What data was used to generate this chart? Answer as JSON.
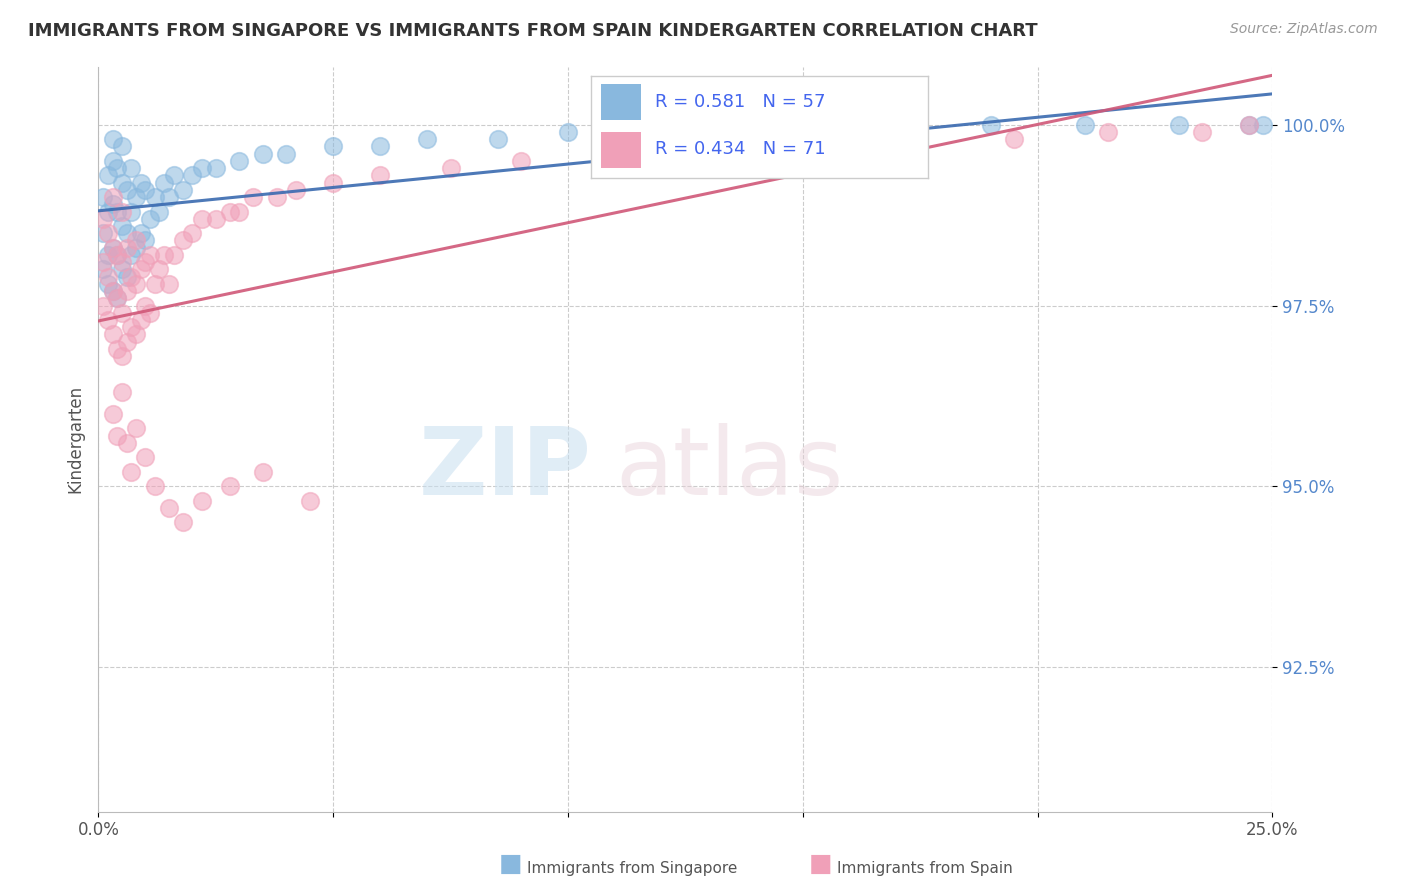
{
  "title": "IMMIGRANTS FROM SINGAPORE VS IMMIGRANTS FROM SPAIN KINDERGARTEN CORRELATION CHART",
  "source": "Source: ZipAtlas.com",
  "ylabel": "Kindergarten",
  "x_min": 0.0,
  "x_max": 0.25,
  "y_min": 0.905,
  "y_max": 1.008,
  "x_ticks": [
    0.0,
    0.05,
    0.1,
    0.15,
    0.2,
    0.25
  ],
  "x_tick_labels": [
    "0.0%",
    "",
    "",
    "",
    "",
    "25.0%"
  ],
  "y_ticks": [
    0.925,
    0.95,
    0.975,
    1.0
  ],
  "y_tick_labels": [
    "92.5%",
    "95.0%",
    "97.5%",
    "100.0%"
  ],
  "singapore_color": "#89b8de",
  "spain_color": "#f0a0b8",
  "singapore_R": 0.581,
  "singapore_N": 57,
  "spain_R": 0.434,
  "spain_N": 71,
  "legend_label_singapore": "Immigrants from Singapore",
  "legend_label_spain": "Immigrants from Spain",
  "sg_trend_color": "#3a6ab0",
  "sp_trend_color": "#d05878",
  "singapore_x": [
    0.001,
    0.001,
    0.001,
    0.002,
    0.002,
    0.002,
    0.002,
    0.003,
    0.003,
    0.003,
    0.003,
    0.003,
    0.004,
    0.004,
    0.004,
    0.004,
    0.005,
    0.005,
    0.005,
    0.005,
    0.006,
    0.006,
    0.006,
    0.007,
    0.007,
    0.007,
    0.008,
    0.008,
    0.009,
    0.009,
    0.01,
    0.01,
    0.011,
    0.012,
    0.013,
    0.014,
    0.015,
    0.016,
    0.018,
    0.02,
    0.022,
    0.025,
    0.03,
    0.035,
    0.04,
    0.05,
    0.06,
    0.07,
    0.085,
    0.1,
    0.13,
    0.16,
    0.19,
    0.21,
    0.23,
    0.245,
    0.248
  ],
  "singapore_y": [
    0.98,
    0.985,
    0.99,
    0.978,
    0.982,
    0.988,
    0.993,
    0.977,
    0.983,
    0.989,
    0.995,
    0.998,
    0.976,
    0.982,
    0.988,
    0.994,
    0.98,
    0.986,
    0.992,
    0.997,
    0.979,
    0.985,
    0.991,
    0.982,
    0.988,
    0.994,
    0.983,
    0.99,
    0.985,
    0.992,
    0.984,
    0.991,
    0.987,
    0.99,
    0.988,
    0.992,
    0.99,
    0.993,
    0.991,
    0.993,
    0.994,
    0.994,
    0.995,
    0.996,
    0.996,
    0.997,
    0.997,
    0.998,
    0.998,
    0.999,
    0.999,
    1.0,
    1.0,
    1.0,
    1.0,
    1.0,
    1.0
  ],
  "spain_x": [
    0.001,
    0.001,
    0.001,
    0.002,
    0.002,
    0.002,
    0.003,
    0.003,
    0.003,
    0.003,
    0.004,
    0.004,
    0.004,
    0.005,
    0.005,
    0.005,
    0.005,
    0.006,
    0.006,
    0.006,
    0.007,
    0.007,
    0.008,
    0.008,
    0.008,
    0.009,
    0.009,
    0.01,
    0.01,
    0.011,
    0.011,
    0.012,
    0.013,
    0.014,
    0.015,
    0.016,
    0.018,
    0.02,
    0.022,
    0.025,
    0.028,
    0.03,
    0.033,
    0.038,
    0.042,
    0.05,
    0.06,
    0.075,
    0.09,
    0.11,
    0.13,
    0.15,
    0.17,
    0.195,
    0.215,
    0.235,
    0.245,
    0.003,
    0.004,
    0.005,
    0.006,
    0.007,
    0.008,
    0.01,
    0.012,
    0.015,
    0.018,
    0.022,
    0.028,
    0.035,
    0.045
  ],
  "spain_y": [
    0.975,
    0.981,
    0.987,
    0.973,
    0.979,
    0.985,
    0.971,
    0.977,
    0.983,
    0.99,
    0.969,
    0.976,
    0.982,
    0.968,
    0.974,
    0.981,
    0.988,
    0.97,
    0.977,
    0.983,
    0.972,
    0.979,
    0.971,
    0.978,
    0.984,
    0.973,
    0.98,
    0.975,
    0.981,
    0.974,
    0.982,
    0.978,
    0.98,
    0.982,
    0.978,
    0.982,
    0.984,
    0.985,
    0.987,
    0.987,
    0.988,
    0.988,
    0.99,
    0.99,
    0.991,
    0.992,
    0.993,
    0.994,
    0.995,
    0.996,
    0.996,
    0.997,
    0.998,
    0.998,
    0.999,
    0.999,
    1.0,
    0.96,
    0.957,
    0.963,
    0.956,
    0.952,
    0.958,
    0.954,
    0.95,
    0.947,
    0.945,
    0.948,
    0.95,
    0.952,
    0.948
  ]
}
